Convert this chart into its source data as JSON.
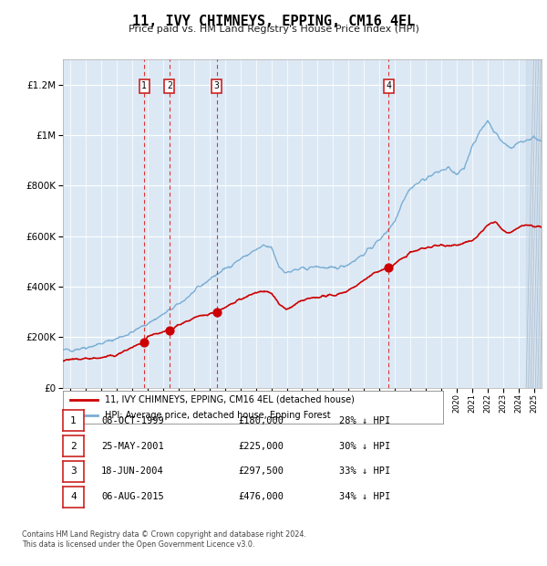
{
  "title": "11, IVY CHIMNEYS, EPPING, CM16 4EL",
  "subtitle": "Price paid vs. HM Land Registry's House Price Index (HPI)",
  "legend_label_red": "11, IVY CHIMNEYS, EPPING, CM16 4EL (detached house)",
  "legend_label_blue": "HPI: Average price, detached house, Epping Forest",
  "footer1": "Contains HM Land Registry data © Crown copyright and database right 2024.",
  "footer2": "This data is licensed under the Open Government Licence v3.0.",
  "sales": [
    {
      "num": 1,
      "date": "08-OCT-1999",
      "year": 1999.77,
      "price": 180000,
      "hpi_pct": "28% ↓ HPI"
    },
    {
      "num": 2,
      "date": "25-MAY-2001",
      "year": 2001.4,
      "price": 225000,
      "hpi_pct": "30% ↓ HPI"
    },
    {
      "num": 3,
      "date": "18-JUN-2004",
      "year": 2004.46,
      "price": 297500,
      "hpi_pct": "33% ↓ HPI"
    },
    {
      "num": 4,
      "date": "06-AUG-2015",
      "year": 2015.6,
      "price": 476000,
      "hpi_pct": "34% ↓ HPI"
    }
  ],
  "ylim": [
    0,
    1300000
  ],
  "xlim_start": 1994.5,
  "xlim_end": 2025.5,
  "background_color": "#dce9f5",
  "red_color": "#cc0000",
  "blue_color": "#7aadd4",
  "hpi_nodes_x": [
    1994.5,
    1995,
    1996,
    1997,
    1998,
    1999,
    2000,
    2001,
    2002,
    2003,
    2004,
    2005,
    2006,
    2007,
    2007.5,
    2008,
    2008.5,
    2009,
    2009.5,
    2010,
    2011,
    2012,
    2013,
    2014,
    2015,
    2016,
    2016.5,
    2017,
    2018,
    2019,
    2019.5,
    2020,
    2020.5,
    2021,
    2021.5,
    2022,
    2022.5,
    2023,
    2023.5,
    2024,
    2025,
    2025.5
  ],
  "hpi_nodes_y": [
    148000,
    150000,
    160000,
    175000,
    195000,
    220000,
    255000,
    290000,
    330000,
    380000,
    430000,
    470000,
    510000,
    545000,
    560000,
    555000,
    480000,
    455000,
    465000,
    470000,
    480000,
    470000,
    490000,
    530000,
    585000,
    660000,
    740000,
    790000,
    830000,
    860000,
    870000,
    840000,
    870000,
    960000,
    1010000,
    1060000,
    1010000,
    970000,
    950000,
    970000,
    990000,
    980000
  ],
  "red_nodes_x": [
    1994.5,
    1995,
    1996,
    1997,
    1998,
    1999,
    1999.77,
    2000,
    2001,
    2001.4,
    2002,
    2003,
    2004,
    2004.46,
    2005,
    2006,
    2007,
    2007.5,
    2008,
    2008.5,
    2009,
    2009.5,
    2010,
    2011,
    2012,
    2013,
    2014,
    2015,
    2015.6,
    2016,
    2017,
    2018,
    2019,
    2020,
    2021,
    2022,
    2022.5,
    2023,
    2023.5,
    2024,
    2024.5,
    2025,
    2025.5
  ],
  "red_nodes_y": [
    108000,
    110000,
    115000,
    118000,
    130000,
    160000,
    180000,
    200000,
    220000,
    225000,
    250000,
    275000,
    295000,
    297500,
    315000,
    350000,
    375000,
    385000,
    375000,
    330000,
    310000,
    325000,
    345000,
    360000,
    365000,
    385000,
    425000,
    465000,
    476000,
    490000,
    535000,
    555000,
    565000,
    565000,
    580000,
    640000,
    660000,
    620000,
    610000,
    635000,
    645000,
    640000,
    630000
  ]
}
